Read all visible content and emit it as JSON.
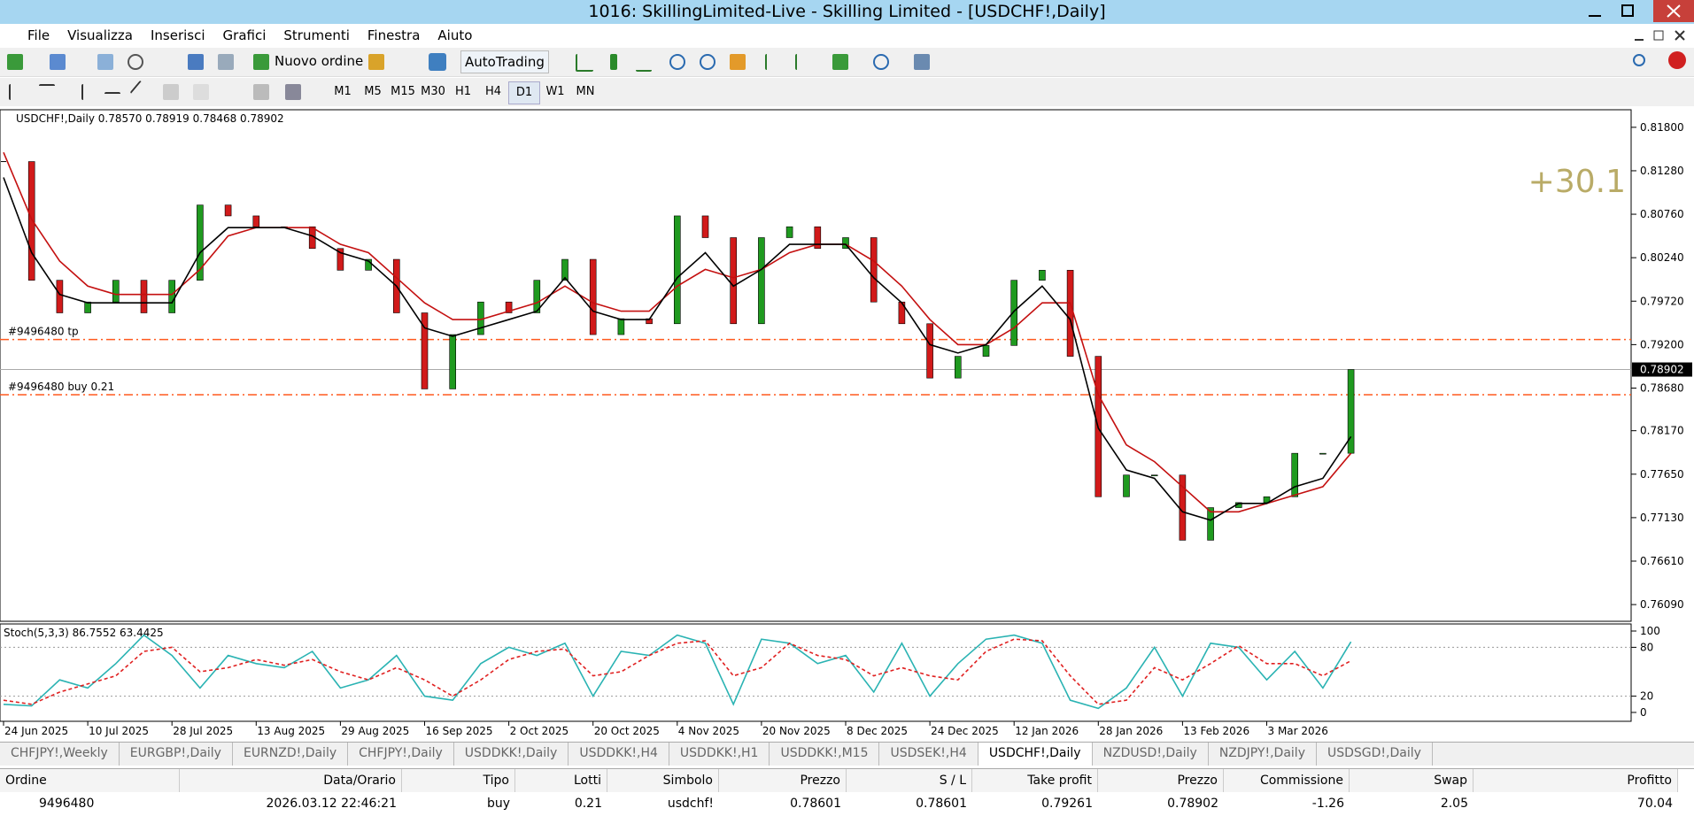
{
  "window": {
    "title": "1016: SkillingLimited-Live - Skilling Limited - [USDCHF!,Daily]"
  },
  "menu": [
    "File",
    "Visualizza",
    "Inserisci",
    "Grafici",
    "Strumenti",
    "Finestra",
    "Aiuto"
  ],
  "toolbar": {
    "new_order": "Nuovo ordine",
    "autotrading": "AutoTrading",
    "timeframes": [
      "M1",
      "M5",
      "M15",
      "M30",
      "H1",
      "H4",
      "D1",
      "W1",
      "MN"
    ],
    "active_timeframe": "D1"
  },
  "chart": {
    "header": "USDCHF!,Daily  0.78570 0.78919 0.78468 0.78902",
    "profit_label": "+30.1",
    "ylim": [
      0.7589,
      0.8201
    ],
    "yticks": [
      {
        "value": 0.818,
        "label": "0.81800"
      },
      {
        "value": 0.8128,
        "label": "0.81280"
      },
      {
        "value": 0.8076,
        "label": "0.80760"
      },
      {
        "value": 0.8024,
        "label": "0.80240"
      },
      {
        "value": 0.7972,
        "label": "0.79720"
      },
      {
        "value": 0.792,
        "label": "0.79200"
      },
      {
        "value": 0.7868,
        "label": "0.78680"
      },
      {
        "value": 0.7817,
        "label": "0.78170"
      },
      {
        "value": 0.7765,
        "label": "0.77650"
      },
      {
        "value": 0.7713,
        "label": "0.77130"
      },
      {
        "value": 0.7661,
        "label": "0.76610"
      },
      {
        "value": 0.7609,
        "label": "0.76090"
      }
    ],
    "closes": [
      0.8139,
      0.7997,
      0.7958,
      0.7971,
      0.7997,
      0.7958,
      0.7997,
      0.8087,
      0.8074,
      0.8061,
      0.8061,
      0.8035,
      0.8009,
      0.8022,
      0.7958,
      0.7867,
      0.7932,
      0.7971,
      0.7958,
      0.7997,
      0.8022,
      0.7932,
      0.7951,
      0.7945,
      0.8074,
      0.8048,
      0.7945,
      0.8048,
      0.8061,
      0.8035,
      0.8048,
      0.7971,
      0.7945,
      0.788,
      0.7906,
      0.7919,
      0.7997,
      0.8009,
      0.7906,
      0.7738,
      0.7764,
      0.7764,
      0.7686,
      0.7725,
      0.7731,
      0.7738,
      0.779,
      0.779,
      0.78902
    ],
    "ma_fast": [
      0.812,
      0.803,
      0.798,
      0.797,
      0.797,
      0.797,
      0.797,
      0.803,
      0.806,
      0.806,
      0.806,
      0.805,
      0.803,
      0.802,
      0.799,
      0.794,
      0.793,
      0.794,
      0.795,
      0.796,
      0.8,
      0.796,
      0.795,
      0.795,
      0.8,
      0.803,
      0.799,
      0.801,
      0.804,
      0.804,
      0.804,
      0.8,
      0.797,
      0.792,
      0.791,
      0.792,
      0.796,
      0.799,
      0.795,
      0.782,
      0.777,
      0.776,
      0.772,
      0.771,
      0.773,
      0.773,
      0.775,
      0.776,
      0.781
    ],
    "ma_slow": [
      0.815,
      0.807,
      0.802,
      0.799,
      0.798,
      0.798,
      0.798,
      0.801,
      0.805,
      0.806,
      0.806,
      0.806,
      0.804,
      0.803,
      0.8,
      0.797,
      0.795,
      0.795,
      0.796,
      0.797,
      0.799,
      0.797,
      0.796,
      0.796,
      0.799,
      0.801,
      0.8,
      0.801,
      0.803,
      0.804,
      0.804,
      0.802,
      0.799,
      0.795,
      0.792,
      0.792,
      0.794,
      0.797,
      0.797,
      0.786,
      0.78,
      0.778,
      0.775,
      0.772,
      0.772,
      0.773,
      0.774,
      0.775,
      0.779
    ],
    "colors": {
      "up": "#1f9a1f",
      "down": "#d11a1a",
      "ma_fast": "#000000",
      "ma_slow": "#c41010",
      "level": "#ff5a1f",
      "stoch_main": "#2ab3b3",
      "stoch_signal": "#e02020"
    },
    "levels": [
      {
        "label": "#9496480 tp",
        "value": 0.79261
      },
      {
        "label": "#9496480 buy 0.21",
        "value": 0.78601
      }
    ],
    "price_line": {
      "value": 0.78902,
      "label": "0.78902"
    },
    "dates": [
      "24 Jun 2025",
      "10 Jul 2025",
      "28 Jul 2025",
      "13 Aug 2025",
      "29 Aug 2025",
      "16 Sep 2025",
      "2 Oct 2025",
      "20 Oct 2025",
      "4 Nov 2025",
      "20 Nov 2025",
      "8 Dec 2025",
      "24 Dec 2025",
      "12 Jan 2026",
      "28 Jan 2026",
      "13 Feb 2026",
      "3 Mar 2026"
    ],
    "stoch": {
      "label": "Stoch(5,3,3) 86.7552 63.4425",
      "ylim": [
        -10.9,
        108.7
      ],
      "yticks": [
        100,
        80,
        20,
        0
      ],
      "levels": [
        80,
        20
      ],
      "main": [
        10,
        8,
        40,
        30,
        60,
        95,
        70,
        30,
        70,
        60,
        55,
        75,
        30,
        40,
        70,
        20,
        15,
        60,
        80,
        70,
        85,
        20,
        75,
        70,
        95,
        85,
        10,
        90,
        85,
        60,
        70,
        25,
        85,
        20,
        60,
        90,
        95,
        85,
        15,
        5,
        30,
        80,
        20,
        85,
        80,
        40,
        75,
        30,
        86.7552
      ],
      "signal": [
        15,
        10,
        25,
        35,
        45,
        75,
        80,
        50,
        55,
        65,
        58,
        65,
        50,
        40,
        55,
        40,
        20,
        40,
        65,
        75,
        78,
        45,
        50,
        70,
        85,
        88,
        45,
        55,
        85,
        70,
        65,
        45,
        55,
        45,
        40,
        75,
        90,
        88,
        45,
        10,
        15,
        55,
        40,
        60,
        82,
        60,
        60,
        45,
        63.4425
      ]
    }
  },
  "tabs": {
    "items": [
      "CHFJPY!,Weekly",
      "EURGBP!,Daily",
      "EURNZD!,Daily",
      "CHFJPY!,Daily",
      "USDDKK!,Daily",
      "USDDKK!,H4",
      "USDDKK!,H1",
      "USDDKK!,M15",
      "USDSEK!,H4",
      "USDCHF!,Daily",
      "NZDUSD!,Daily",
      "NZDJPY!,Daily",
      "USDSGD!,Daily"
    ],
    "active": "USDCHF!,Daily"
  },
  "terminal": {
    "columns": [
      "Ordine",
      "Data/Orario",
      "Tipo",
      "Lotti",
      "Simbolo",
      "Prezzo",
      "S / L",
      "Take profit",
      "Prezzo",
      "Commissione",
      "Swap",
      "Profitto"
    ],
    "rows": [
      [
        "9496480",
        "2026.03.12 22:46:21",
        "buy",
        "0.21",
        "usdchf!",
        "0.78601",
        "0.78601",
        "0.79261",
        "0.78902",
        "-1.26",
        "2.05",
        "70.04"
      ]
    ]
  }
}
